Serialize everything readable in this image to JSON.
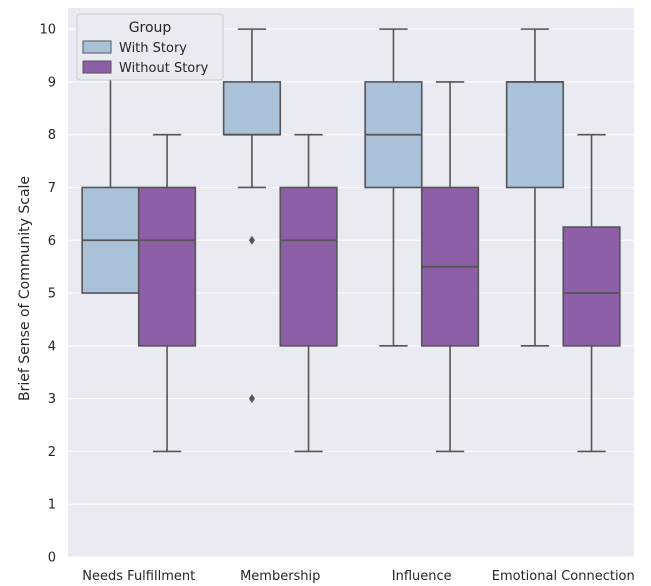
{
  "chart_data": {
    "type": "box",
    "xlabel": "",
    "ylabel": "Brief Sense of Community Scale",
    "ylim": [
      0,
      10.4
    ],
    "yticks": [
      0,
      1,
      2,
      3,
      4,
      5,
      6,
      7,
      8,
      9,
      10
    ],
    "grid": true,
    "categories": [
      "Needs Fulfillment",
      "Membership",
      "Influence",
      "Emotional Connection"
    ],
    "legend": {
      "title": "Group",
      "placement": "top-left"
    },
    "series": [
      {
        "name": "With Story",
        "color": "#a9c2d9",
        "boxes": [
          {
            "whisker_low": null,
            "q1": 5,
            "median": 6,
            "q3": 7,
            "whisker_high": 10,
            "outliers": []
          },
          {
            "whisker_low": 7,
            "q1": 8,
            "median": 8,
            "q3": 9,
            "whisker_high": 10,
            "outliers": [
              6,
              3
            ]
          },
          {
            "whisker_low": 4,
            "q1": 7,
            "median": 8,
            "q3": 9,
            "whisker_high": 10,
            "outliers": []
          },
          {
            "whisker_low": 4,
            "q1": 7,
            "median": 9,
            "q3": 9,
            "whisker_high": 10,
            "outliers": []
          }
        ]
      },
      {
        "name": "Without Story",
        "color": "#8c5fa6",
        "boxes": [
          {
            "whisker_low": 2,
            "q1": 4,
            "median": 6,
            "q3": 7,
            "whisker_high": 8,
            "outliers": []
          },
          {
            "whisker_low": 2,
            "q1": 4,
            "median": 6,
            "q3": 7,
            "whisker_high": 8,
            "outliers": []
          },
          {
            "whisker_low": 2,
            "q1": 4,
            "median": 5.5,
            "q3": 7,
            "whisker_high": 9,
            "outliers": []
          },
          {
            "whisker_low": 2,
            "q1": 4,
            "median": 5,
            "q3": 6.25,
            "whisker_high": 8,
            "outliers": []
          }
        ]
      }
    ]
  }
}
